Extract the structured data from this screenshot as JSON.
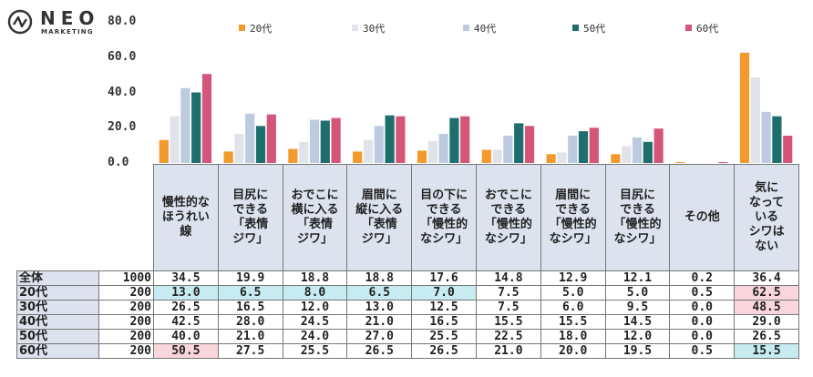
{
  "logo": {
    "name": "NEO",
    "sub": "MARKETING"
  },
  "chart_data": {
    "type": "bar",
    "ylim": [
      0,
      80
    ],
    "yticks": [
      "80.0",
      "60.0",
      "40.0",
      "20.0",
      "0.0"
    ],
    "categories": [
      "慢性的な\nほうれい\n線",
      "目尻に\nできる\n「表情\nジワ」",
      "おでこに\n横に入る\n「表情\nジワ」",
      "眉間に\n縦に入る\n「表情\nジワ」",
      "目の下に\nできる\n「慢性的\nなシワ」",
      "おでこに\nできる\n「慢性的\nなシワ」",
      "眉間に\nできる\n「慢性的\nなシワ」",
      "目尻に\nできる\n「慢性的\nなシワ」",
      "その他",
      "気に\nなって\nいる\nシワは\nない"
    ],
    "series": [
      {
        "name": "20代",
        "color": "#f29a2e",
        "values": [
          13.0,
          6.5,
          8.0,
          6.5,
          7.0,
          7.5,
          5.0,
          5.0,
          0.5,
          62.5
        ]
      },
      {
        "name": "30代",
        "color": "#e0e3ea",
        "values": [
          26.5,
          16.5,
          12.0,
          13.0,
          12.5,
          7.5,
          6.0,
          9.5,
          0.0,
          48.5
        ]
      },
      {
        "name": "40代",
        "color": "#bccbdf",
        "values": [
          42.5,
          28.0,
          24.5,
          21.0,
          16.5,
          15.5,
          15.5,
          14.5,
          0.0,
          29.0
        ]
      },
      {
        "name": "50代",
        "color": "#1f6e6e",
        "values": [
          40.0,
          21.0,
          24.0,
          27.0,
          25.5,
          22.5,
          18.0,
          12.0,
          0.0,
          26.5
        ]
      },
      {
        "name": "60代",
        "color": "#d4557a",
        "values": [
          50.5,
          27.5,
          25.5,
          26.5,
          26.5,
          21.0,
          20.0,
          19.5,
          0.5,
          15.5
        ]
      }
    ]
  },
  "table": {
    "rows": [
      {
        "label": "全体",
        "n": "1000",
        "values": [
          "34.5",
          "19.9",
          "18.8",
          "18.8",
          "17.6",
          "14.8",
          "12.9",
          "12.1",
          "0.2",
          "36.4"
        ],
        "hl": [
          "",
          "",
          "",
          "",
          "",
          "",
          "",
          "",
          "",
          ""
        ]
      },
      {
        "label": "20代",
        "n": "200",
        "values": [
          "13.0",
          "6.5",
          "8.0",
          "6.5",
          "7.0",
          "7.5",
          "5.0",
          "5.0",
          "0.5",
          "62.5"
        ],
        "hl": [
          "cyan",
          "cyan",
          "cyan",
          "cyan",
          "cyan",
          "",
          "",
          "",
          "",
          "pink"
        ]
      },
      {
        "label": "30代",
        "n": "200",
        "values": [
          "26.5",
          "16.5",
          "12.0",
          "13.0",
          "12.5",
          "7.5",
          "6.0",
          "9.5",
          "0.0",
          "48.5"
        ],
        "hl": [
          "",
          "",
          "",
          "",
          "",
          "",
          "",
          "",
          "",
          "pink"
        ]
      },
      {
        "label": "40代",
        "n": "200",
        "values": [
          "42.5",
          "28.0",
          "24.5",
          "21.0",
          "16.5",
          "15.5",
          "15.5",
          "14.5",
          "0.0",
          "29.0"
        ],
        "hl": [
          "",
          "",
          "",
          "",
          "",
          "",
          "",
          "",
          "",
          ""
        ]
      },
      {
        "label": "50代",
        "n": "200",
        "values": [
          "40.0",
          "21.0",
          "24.0",
          "27.0",
          "25.5",
          "22.5",
          "18.0",
          "12.0",
          "0.0",
          "26.5"
        ],
        "hl": [
          "",
          "",
          "",
          "",
          "",
          "",
          "",
          "",
          "",
          ""
        ]
      },
      {
        "label": "60代",
        "n": "200",
        "values": [
          "50.5",
          "27.5",
          "25.5",
          "26.5",
          "26.5",
          "21.0",
          "20.0",
          "19.5",
          "0.5",
          "15.5"
        ],
        "hl": [
          "pink",
          "",
          "",
          "",
          "",
          "",
          "",
          "",
          "",
          "cyan"
        ]
      }
    ]
  },
  "colors": {
    "header_bg": "#dde3ee",
    "highlight_pink": "#f9d6dc",
    "highlight_cyan": "#c6ecf1"
  }
}
